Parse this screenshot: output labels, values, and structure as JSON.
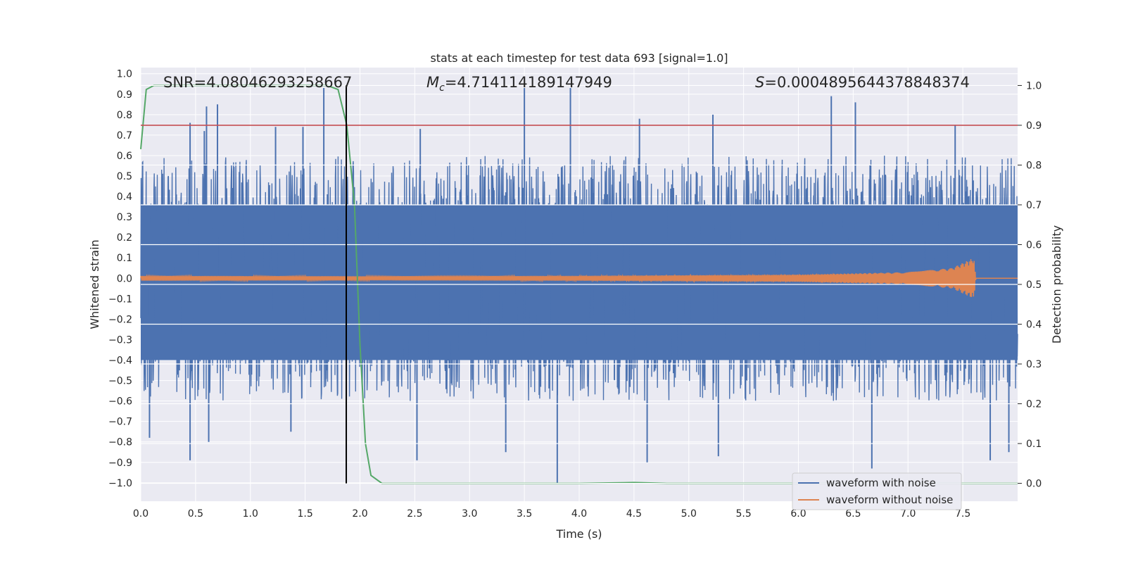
{
  "chart_data": {
    "type": "line",
    "title": "stats at each timestep for test data 693 [signal=1.0]",
    "xlabel": "Time (s)",
    "ylabel_left": "Whitened strain",
    "ylabel_right": "Detection probability",
    "xlim": [
      0.0,
      8.0
    ],
    "ylim_left": [
      -1.09,
      1.03
    ],
    "ylim_right": [
      -0.045,
      1.045
    ],
    "x_ticks": [
      "0.0",
      "0.5",
      "1.0",
      "1.5",
      "2.0",
      "2.5",
      "3.0",
      "3.5",
      "4.0",
      "4.5",
      "5.0",
      "5.5",
      "6.0",
      "6.5",
      "7.0",
      "7.5"
    ],
    "y_ticks_left": [
      "1.0",
      "0.9",
      "0.8",
      "0.7",
      "0.6",
      "0.5",
      "0.4",
      "0.3",
      "0.2",
      "0.1",
      "0.0",
      "−0.1",
      "−0.2",
      "−0.3",
      "−0.4",
      "−0.5",
      "−0.6",
      "−0.7",
      "−0.8",
      "−0.9",
      "−1.0"
    ],
    "y_ticks_right": [
      "1.0",
      "0.9",
      "0.8",
      "0.7",
      "0.6",
      "0.5",
      "0.4",
      "0.3",
      "0.2",
      "0.1",
      "0.0"
    ],
    "annotations": {
      "snr": "SNR=4.08046293258667",
      "mc_symbol": "M",
      "mc_sub": "c",
      "mc_value": "=4.714114189147949",
      "s_symbol": "S",
      "s_value": "=0.0004895644378848374"
    },
    "threshold_probability": 0.9,
    "detection_time": 1.875,
    "grid": true,
    "legend_position": "lower right",
    "series": [
      {
        "name": "waveform with noise",
        "axis": "left",
        "color": "#4c72b0",
        "description_values": {
          "typical_range": [
            -0.55,
            0.55
          ],
          "peak_max": 0.93,
          "peak_min": -1.0
        },
        "spikes_up": [
          [
            0.45,
            0.76
          ],
          [
            0.58,
            0.72
          ],
          [
            0.6,
            0.84
          ],
          [
            0.7,
            0.85
          ],
          [
            1.23,
            0.74
          ],
          [
            1.48,
            0.74
          ],
          [
            1.67,
            0.93
          ],
          [
            2.55,
            0.73
          ],
          [
            3.5,
            0.93
          ],
          [
            3.92,
            0.93
          ],
          [
            4.55,
            0.78
          ],
          [
            5.22,
            0.8
          ],
          [
            6.3,
            0.89
          ],
          [
            6.52,
            0.86
          ],
          [
            7.43,
            0.75
          ]
        ],
        "spikes_down": [
          [
            0.08,
            -0.78
          ],
          [
            0.45,
            -0.89
          ],
          [
            0.62,
            -0.8
          ],
          [
            1.37,
            -0.75
          ],
          [
            2.52,
            -0.89
          ],
          [
            3.33,
            -0.85
          ],
          [
            3.8,
            -1.0
          ],
          [
            4.62,
            -0.9
          ],
          [
            5.27,
            -0.87
          ],
          [
            6.67,
            -0.93
          ],
          [
            7.75,
            -0.89
          ],
          [
            7.92,
            -0.85
          ]
        ]
      },
      {
        "name": "waveform without noise",
        "axis": "left",
        "color": "#dd8452",
        "amplitude_envelope": [
          [
            0.0,
            0.012
          ],
          [
            2.0,
            0.01
          ],
          [
            4.0,
            0.012
          ],
          [
            6.0,
            0.018
          ],
          [
            7.0,
            0.03
          ],
          [
            7.4,
            0.05
          ],
          [
            7.6,
            0.1
          ],
          [
            7.62,
            0.0
          ],
          [
            8.0,
            0.0
          ]
        ]
      },
      {
        "name": "",
        "axis": "right",
        "color": "#55a868",
        "points": [
          [
            0.0,
            0.84
          ],
          [
            0.05,
            0.99
          ],
          [
            0.12,
            1.0
          ],
          [
            1.7,
            1.0
          ],
          [
            1.8,
            0.99
          ],
          [
            1.88,
            0.9
          ],
          [
            1.95,
            0.7
          ],
          [
            2.0,
            0.35
          ],
          [
            2.05,
            0.1
          ],
          [
            2.1,
            0.02
          ],
          [
            2.2,
            0.0
          ],
          [
            3.0,
            0.0
          ],
          [
            4.0,
            0.0
          ],
          [
            4.5,
            0.002
          ],
          [
            4.8,
            0.0
          ],
          [
            8.0,
            0.0
          ]
        ]
      }
    ],
    "colors": {
      "background": "#eaeaf2",
      "grid": "#ffffff",
      "threshold": "#c44e52",
      "detection_line": "#000000"
    }
  }
}
